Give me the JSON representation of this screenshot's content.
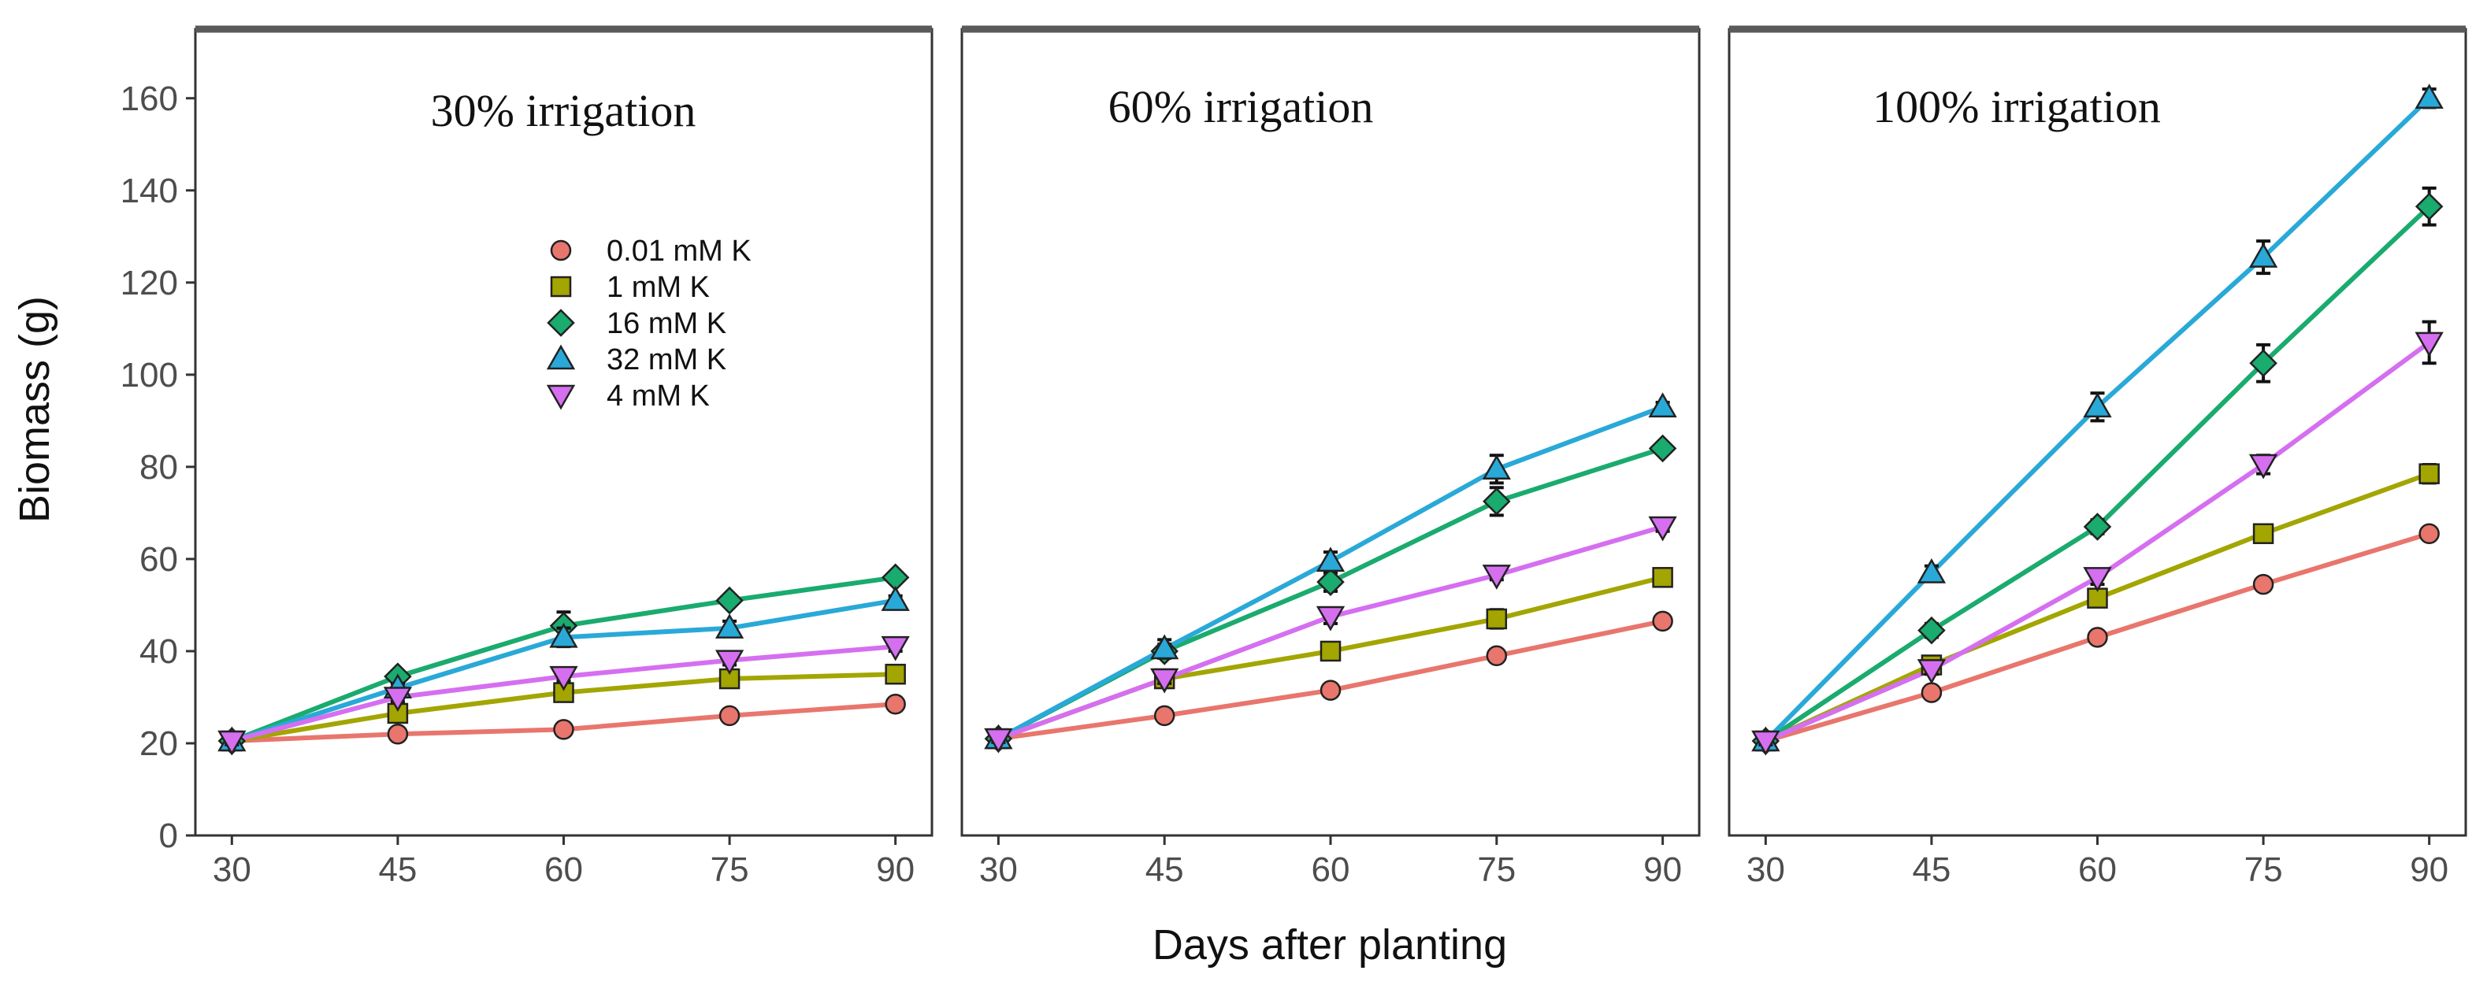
{
  "figure": {
    "ylabel": "Biomass  (g)",
    "xlabel": "Days after planting"
  },
  "chart_data": {
    "type": "line",
    "x": [
      30,
      45,
      60,
      75,
      90
    ],
    "ylim": [
      0,
      175
    ],
    "yticks": [
      0,
      20,
      40,
      60,
      80,
      100,
      120,
      140,
      160
    ],
    "xticks": [
      30,
      45,
      60,
      75,
      90
    ],
    "series_styles": [
      {
        "name": "0.01 mM K",
        "color": "#e8766d",
        "marker": "circle"
      },
      {
        "name": "1 mM K",
        "color": "#a3a500",
        "marker": "square"
      },
      {
        "name": "16 mM  K",
        "color": "#1aab6e",
        "marker": "diamond"
      },
      {
        "name": "32 mM K",
        "color": "#29a9d8",
        "marker": "triangle-up"
      },
      {
        "name": "4 mM  K",
        "color": "#d56ff0",
        "marker": "triangle-down"
      }
    ],
    "legend": {
      "entries": [
        "0.01 mM K",
        "1 mM K",
        "16 mM  K",
        "32 mM K",
        "4 mM  K"
      ],
      "placement": "inside panel 1, upper-middle"
    },
    "panels": [
      {
        "title": "30% irrigation",
        "series": [
          {
            "name": "0.01 mM K",
            "values": [
              20.5,
              22,
              23,
              26,
              28.5
            ],
            "errors": [
              0.8,
              0.8,
              0.8,
              0.8,
              0.8
            ]
          },
          {
            "name": "1 mM K",
            "values": [
              20.5,
              26.5,
              31,
              34,
              35
            ],
            "errors": [
              0.8,
              1,
              1,
              1,
              1
            ]
          },
          {
            "name": "16 mM  K",
            "values": [
              20.5,
              34.5,
              45.5,
              51,
              56
            ],
            "errors": [
              0.8,
              1.2,
              3,
              1,
              1
            ]
          },
          {
            "name": "32 mM K",
            "values": [
              20.5,
              32,
              43,
              45,
              51
            ],
            "errors": [
              0.8,
              1,
              2,
              1.5,
              1
            ]
          },
          {
            "name": "4 mM  K",
            "values": [
              20.5,
              30,
              34.5,
              38,
              41
            ],
            "errors": [
              0.8,
              1,
              1,
              1,
              1
            ]
          }
        ]
      },
      {
        "title": "60% irrigation",
        "series": [
          {
            "name": "0.01 mM K",
            "values": [
              21,
              26,
              31.5,
              39,
              46.5
            ],
            "errors": [
              0.8,
              0.8,
              0.8,
              0.8,
              1
            ]
          },
          {
            "name": "1 mM K",
            "values": [
              21,
              34,
              40,
              47,
              56
            ],
            "errors": [
              0.8,
              1,
              1.5,
              2,
              1
            ]
          },
          {
            "name": "16 mM  K",
            "values": [
              21,
              40,
              55,
              72.5,
              84
            ],
            "errors": [
              0.8,
              1.5,
              2,
              3,
              1
            ]
          },
          {
            "name": "32 mM K",
            "values": [
              21,
              40.5,
              59.5,
              79.5,
              93
            ],
            "errors": [
              0.8,
              2,
              2,
              3,
              1
            ]
          },
          {
            "name": "4 mM  K",
            "values": [
              21,
              34,
              47.5,
              56.5,
              67
            ],
            "errors": [
              0.8,
              1,
              1.5,
              1,
              1
            ]
          }
        ]
      },
      {
        "title": "100% irrigation",
        "series": [
          {
            "name": "0.01 mM K",
            "values": [
              20.5,
              31,
              43,
              54.5,
              65.5
            ],
            "errors": [
              0.8,
              1,
              1,
              1,
              1
            ]
          },
          {
            "name": "1 mM K",
            "values": [
              20.5,
              37,
              51.5,
              65.5,
              78.5
            ],
            "errors": [
              0.8,
              1,
              1.5,
              1.5,
              2
            ]
          },
          {
            "name": "16 mM  K",
            "values": [
              20.5,
              44.5,
              67,
              102.5,
              136.5
            ],
            "errors": [
              0.8,
              1.5,
              1.5,
              4,
              4
            ]
          },
          {
            "name": "32 mM K",
            "values": [
              20.5,
              57,
              93,
              125.5,
              160
            ],
            "errors": [
              0.8,
              1.5,
              3,
              3.5,
              2
            ]
          },
          {
            "name": "4 mM  K",
            "values": [
              20.5,
              36,
              56,
              80.5,
              107
            ],
            "errors": [
              0.8,
              1,
              1.5,
              2,
              4.5
            ]
          }
        ]
      }
    ]
  }
}
